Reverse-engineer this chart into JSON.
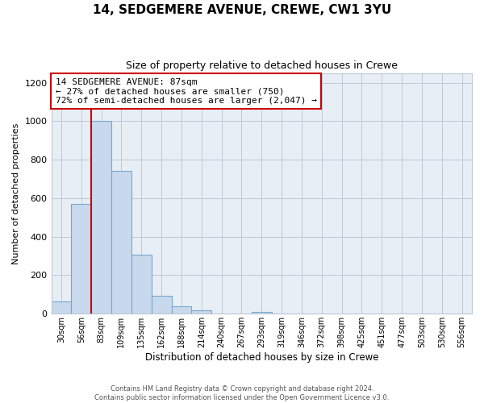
{
  "title": "14, SEDGEMERE AVENUE, CREWE, CW1 3YU",
  "subtitle": "Size of property relative to detached houses in Crewe",
  "xlabel": "Distribution of detached houses by size in Crewe",
  "ylabel": "Number of detached properties",
  "bar_labels": [
    "30sqm",
    "56sqm",
    "83sqm",
    "109sqm",
    "135sqm",
    "162sqm",
    "188sqm",
    "214sqm",
    "240sqm",
    "267sqm",
    "293sqm",
    "319sqm",
    "346sqm",
    "372sqm",
    "398sqm",
    "425sqm",
    "451sqm",
    "477sqm",
    "503sqm",
    "530sqm",
    "556sqm"
  ],
  "bar_values": [
    65,
    570,
    1000,
    740,
    305,
    95,
    40,
    20,
    0,
    0,
    10,
    0,
    0,
    0,
    0,
    0,
    0,
    0,
    0,
    0,
    0
  ],
  "bar_color": "#c8d9ed",
  "bar_edge_color": "#7aa6cc",
  "vline_color": "#cc0000",
  "annotation_line1": "14 SEDGEMERE AVENUE: 87sqm",
  "annotation_line2": "← 27% of detached houses are smaller (750)",
  "annotation_line3": "72% of semi-detached houses are larger (2,047) →",
  "annotation_box_color": "#ffffff",
  "annotation_box_edge": "#cc0000",
  "ylim": [
    0,
    1250
  ],
  "yticks": [
    0,
    200,
    400,
    600,
    800,
    1000,
    1200
  ],
  "footer": "Contains HM Land Registry data © Crown copyright and database right 2024.\nContains public sector information licensed under the Open Government Licence v3.0.",
  "bg_color": "#ffffff",
  "plot_bg_color": "#e8eef5",
  "grid_color": "#c0c8d4"
}
